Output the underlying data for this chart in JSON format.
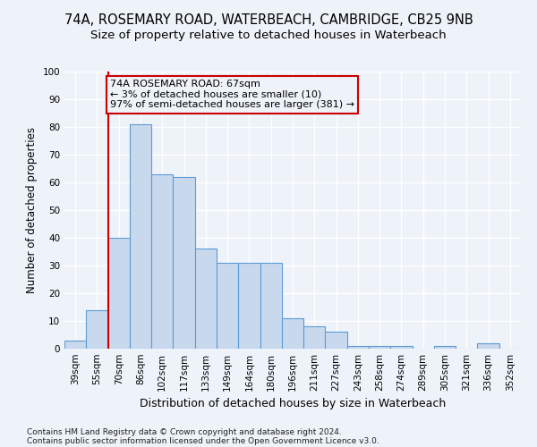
{
  "title_line1": "74A, ROSEMARY ROAD, WATERBEACH, CAMBRIDGE, CB25 9NB",
  "title_line2": "Size of property relative to detached houses in Waterbeach",
  "xlabel": "Distribution of detached houses by size in Waterbeach",
  "ylabel": "Number of detached properties",
  "footer_line1": "Contains HM Land Registry data © Crown copyright and database right 2024.",
  "footer_line2": "Contains public sector information licensed under the Open Government Licence v3.0.",
  "bar_labels": [
    "39sqm",
    "55sqm",
    "70sqm",
    "86sqm",
    "102sqm",
    "117sqm",
    "133sqm",
    "149sqm",
    "164sqm",
    "180sqm",
    "196sqm",
    "211sqm",
    "227sqm",
    "243sqm",
    "258sqm",
    "274sqm",
    "289sqm",
    "305sqm",
    "321sqm",
    "336sqm",
    "352sqm"
  ],
  "bar_values": [
    3,
    14,
    40,
    81,
    63,
    62,
    36,
    31,
    31,
    31,
    11,
    8,
    6,
    1,
    1,
    1,
    0,
    1,
    0,
    2,
    0
  ],
  "bar_color": "#c9d9ed",
  "bar_edgecolor": "#5b9bd5",
  "annotation_text": "74A ROSEMARY ROAD: 67sqm\n← 3% of detached houses are smaller (10)\n97% of semi-detached houses are larger (381) →",
  "annotation_box_edgecolor": "#cc0000",
  "vline_x": 1.5,
  "vline_color": "#cc0000",
  "ylim": [
    0,
    100
  ],
  "yticks": [
    0,
    10,
    20,
    30,
    40,
    50,
    60,
    70,
    80,
    90,
    100
  ],
  "bg_color": "#eef2f9",
  "plot_bg_color": "#eef2f9",
  "grid_color": "#ffffff",
  "title_fontsize": 10.5,
  "subtitle_fontsize": 9.5,
  "annot_fontsize": 8.0,
  "ylabel_fontsize": 8.5,
  "xlabel_fontsize": 9.0,
  "tick_fontsize": 7.5,
  "footer_fontsize": 6.5
}
